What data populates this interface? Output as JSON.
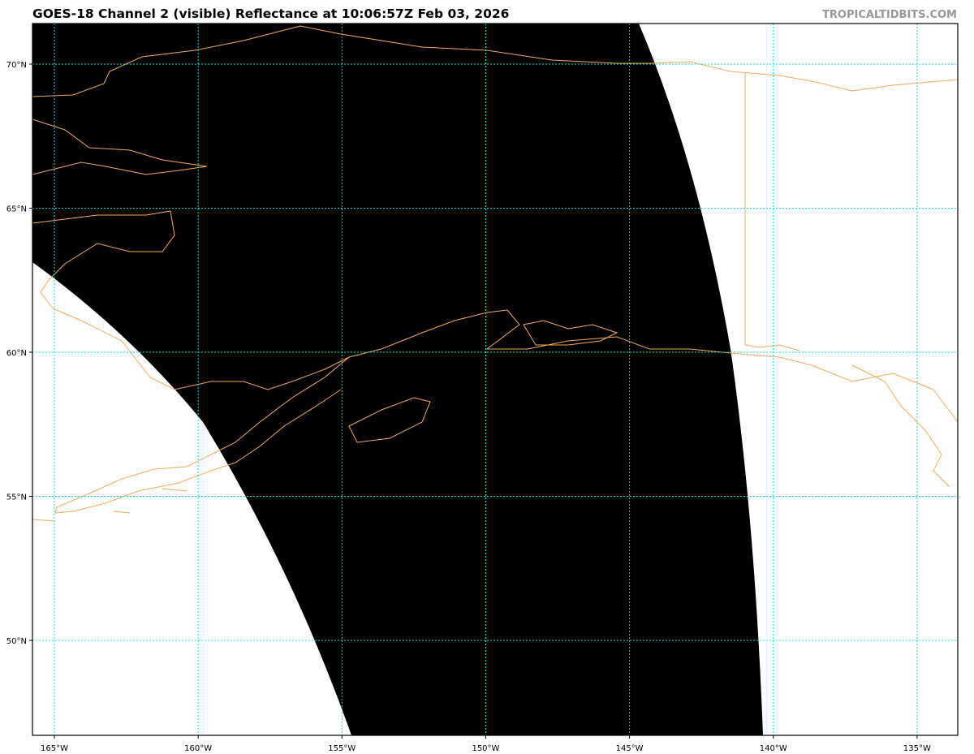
{
  "title": "GOES-18 Channel 2 (visible) Reflectance at 10:06:57Z Feb 03, 2026",
  "watermark": "TROPICALTIDBITS.COM",
  "map": {
    "colors": {
      "swath": "#000000",
      "coastline": "#f4a95a",
      "gridline": "#00e5e5",
      "offscan": "#ffffff"
    },
    "longitudes": [
      {
        "value": -165,
        "label": "165°W"
      },
      {
        "value": -160,
        "label": "160°W"
      },
      {
        "value": -155,
        "label": "155°W"
      },
      {
        "value": -150,
        "label": "150°W"
      },
      {
        "value": -145,
        "label": "145°W"
      },
      {
        "value": -140,
        "label": "140°W"
      },
      {
        "value": -135,
        "label": "135°W"
      }
    ],
    "latitudes": [
      {
        "value": 70,
        "label": "70°N"
      },
      {
        "value": 65,
        "label": "65°N"
      },
      {
        "value": 60,
        "label": "60°N"
      },
      {
        "value": 55,
        "label": "55°N"
      },
      {
        "value": 50,
        "label": "50°N"
      }
    ]
  }
}
